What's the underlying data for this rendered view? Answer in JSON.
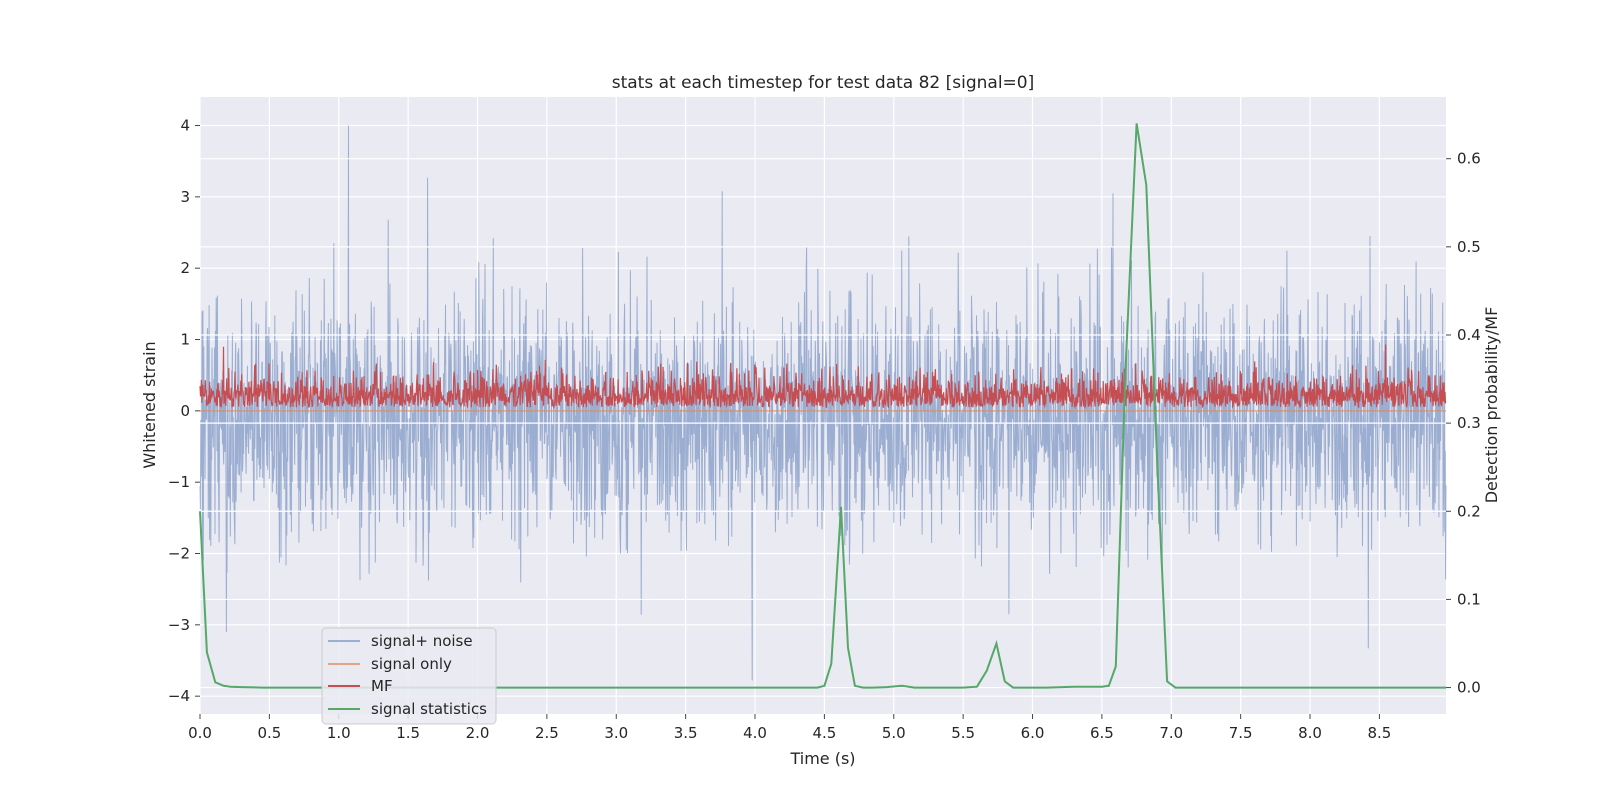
{
  "chart_data": {
    "type": "line",
    "title": "stats at each timestep for test data 82 [signal=0]",
    "xlabel": "Time (s)",
    "ylabel": "Whitened strain",
    "ylabel_right": "Detection probability/MF",
    "xlim": [
      0.0,
      8.98
    ],
    "ylim": [
      -4.25,
      4.4
    ],
    "ylim_right": [
      -0.03,
      0.67
    ],
    "x_ticks": [
      0.0,
      0.5,
      1.0,
      1.5,
      2.0,
      2.5,
      3.0,
      3.5,
      4.0,
      4.5,
      5.0,
      5.5,
      6.0,
      6.5,
      7.0,
      7.5,
      8.0,
      8.5
    ],
    "x_tick_labels": [
      "0.0",
      "0.5",
      "1.0",
      "1.5",
      "2.0",
      "2.5",
      "3.0",
      "3.5",
      "4.0",
      "4.5",
      "5.0",
      "5.5",
      "6.0",
      "6.5",
      "7.0",
      "7.5",
      "8.0",
      "8.5"
    ],
    "y_ticks": [
      -4,
      -3,
      -2,
      -1,
      0,
      1,
      2,
      3,
      4
    ],
    "y_tick_labels": [
      "−4",
      "−3",
      "−2",
      "−1",
      "0",
      "1",
      "2",
      "3",
      "4"
    ],
    "y_right_ticks": [
      0.0,
      0.1,
      0.2,
      0.3,
      0.4,
      0.5,
      0.6
    ],
    "y_right_tick_labels": [
      "0.0",
      "0.1",
      "0.2",
      "0.3",
      "0.4",
      "0.5",
      "0.6"
    ],
    "grid": true,
    "legend_position": "lower-left",
    "colors": {
      "noise": "#4c72b0",
      "signal": "#dd8452",
      "mf": "#c44e52",
      "stats": "#55a868",
      "plot_bg": "#eaeaf2",
      "grid": "#ffffff"
    },
    "series": [
      {
        "name": "signal+ noise",
        "axis": "left",
        "style": "dense-noise",
        "sample_rate_hz": 2048,
        "envelope_min": -4.0,
        "envelope_max": 4.0,
        "notable_spikes": [
          {
            "x": 1.07,
            "y": 4.0
          },
          {
            "x": 1.64,
            "y": 3.27
          },
          {
            "x": 6.58,
            "y": 3.05
          },
          {
            "x": 3.98,
            "y": -3.78
          },
          {
            "x": 8.42,
            "y": -3.33
          },
          {
            "x": 0.19,
            "y": -3.1
          }
        ]
      },
      {
        "name": "signal only",
        "axis": "left",
        "values_constant": 0.0
      },
      {
        "name": "MF",
        "axis": "left",
        "style": "dense-noise",
        "range": [
          0.0,
          0.93
        ]
      },
      {
        "name": "signal statistics",
        "axis": "right",
        "x": [
          0.0,
          0.05,
          0.11,
          0.17,
          0.22,
          0.3,
          0.45,
          0.6,
          0.75,
          0.9,
          1.0,
          1.5,
          2.0,
          2.5,
          3.0,
          3.5,
          4.0,
          4.45,
          4.5,
          4.55,
          4.62,
          4.67,
          4.72,
          4.78,
          4.85,
          4.95,
          5.06,
          5.15,
          5.3,
          5.5,
          5.6,
          5.67,
          5.74,
          5.8,
          5.86,
          5.95,
          6.1,
          6.3,
          6.5,
          6.55,
          6.6,
          6.67,
          6.75,
          6.82,
          6.9,
          6.97,
          7.03,
          7.2,
          7.5,
          8.0,
          8.5,
          8.98
        ],
        "y": [
          0.2,
          0.04,
          0.006,
          0.002,
          0.001,
          0.0005,
          0.0,
          0.0,
          0.0,
          0.0,
          0.0,
          0.0,
          0.0,
          0.0,
          0.0,
          0.0,
          0.0,
          0.0,
          0.002,
          0.027,
          0.205,
          0.045,
          0.002,
          0.0,
          0.0,
          0.0005,
          0.002,
          0.0,
          0.0,
          0.0,
          0.001,
          0.019,
          0.05,
          0.007,
          0.0,
          0.0,
          0.0,
          0.001,
          0.001,
          0.002,
          0.024,
          0.36,
          0.64,
          0.57,
          0.25,
          0.007,
          0.0,
          0.0,
          0.0,
          0.0,
          0.0,
          0.0
        ]
      }
    ]
  }
}
